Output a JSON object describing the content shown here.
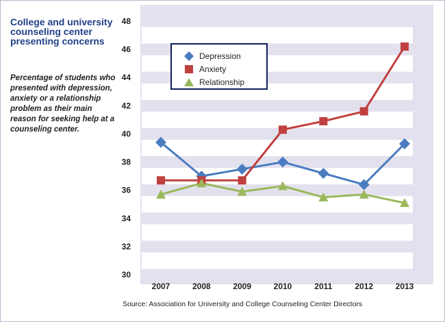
{
  "chart_data": {
    "type": "line",
    "title": "College and university counseling center presenting concerns",
    "subtitle": "Percentage of students who presented with depression, anxiety or a relationship problem as their main reason for seeking help at a counseling center.",
    "source": "Source: Association for University and College Counseling Center Directors",
    "categories": [
      "2007",
      "2008",
      "2009",
      "2010",
      "2011",
      "2012",
      "2013"
    ],
    "ylim": [
      30,
      48
    ],
    "yticks": [
      "30",
      "32",
      "34",
      "36",
      "38",
      "40",
      "42",
      "44",
      "46",
      "48"
    ],
    "series": [
      {
        "name": "Depression",
        "color": "#4a7cc0",
        "marker": "diamond",
        "values": [
          39.4,
          37.0,
          37.5,
          38.0,
          37.2,
          36.4,
          39.3
        ]
      },
      {
        "name": "Anxiety",
        "color": "#c0403f",
        "marker": "square",
        "values": [
          36.7,
          36.7,
          36.7,
          40.3,
          40.9,
          41.6,
          46.2
        ]
      },
      {
        "name": "Relationship",
        "color": "#9ab85a",
        "marker": "triangle",
        "values": [
          35.7,
          36.5,
          35.9,
          36.3,
          35.5,
          35.7,
          35.1
        ]
      }
    ]
  },
  "colors": {
    "band": "#e3e1ee",
    "axis_text": "#222222",
    "title": "#1f3f88",
    "legend_border": "#0d1f5c"
  }
}
